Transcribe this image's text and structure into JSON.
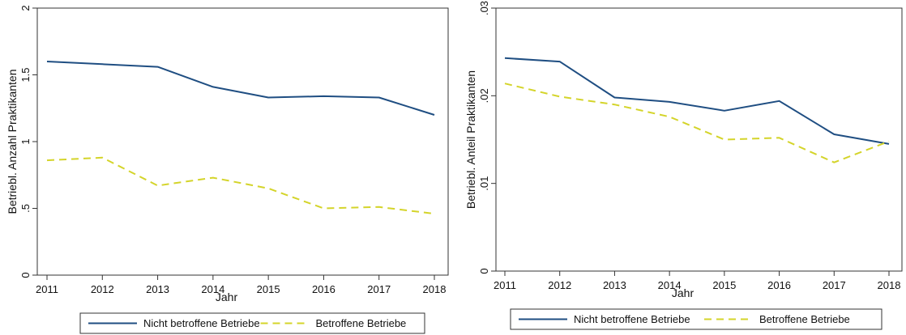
{
  "chart_data": [
    {
      "type": "line",
      "xlabel": "Jahr",
      "ylabel": "Betriebl. Anzahl Praktikanten",
      "x": [
        2011,
        2012,
        2013,
        2014,
        2015,
        2016,
        2017,
        2018
      ],
      "x_tick_labels": [
        "2011",
        "2012",
        "2013",
        "2014",
        "2015",
        "2016",
        "2017",
        "2018"
      ],
      "ylim": [
        0,
        2
      ],
      "y_ticks": [
        0,
        0.5,
        1,
        1.5,
        2
      ],
      "y_tick_labels": [
        "0",
        ".5",
        "1",
        "1.5",
        "2"
      ],
      "grid": false,
      "legend_position": "bottom",
      "series": [
        {
          "name": "Nicht betroffene Betriebe",
          "values": [
            1.6,
            1.58,
            1.56,
            1.41,
            1.33,
            1.34,
            1.33,
            1.2
          ],
          "color": "#1f4e82",
          "style": "solid"
        },
        {
          "name": "Betroffene Betriebe",
          "values": [
            0.86,
            0.88,
            0.67,
            0.73,
            0.65,
            0.5,
            0.51,
            0.46
          ],
          "color": "#d4d42a",
          "style": "dashed"
        }
      ]
    },
    {
      "type": "line",
      "xlabel": "Jahr",
      "ylabel": "Betriebl. Anteil Praktikanten",
      "x": [
        2011,
        2012,
        2013,
        2014,
        2015,
        2016,
        2017,
        2018
      ],
      "x_tick_labels": [
        "2011",
        "2012",
        "2013",
        "2014",
        "2015",
        "2016",
        "2017",
        "2018"
      ],
      "ylim": [
        0,
        0.03
      ],
      "y_ticks": [
        0,
        0.01,
        0.02,
        0.03
      ],
      "y_tick_labels": [
        "0",
        ".01",
        ".02",
        ".03"
      ],
      "grid": false,
      "legend_position": "bottom",
      "series": [
        {
          "name": "Nicht betroffene Betriebe",
          "values": [
            0.0243,
            0.0239,
            0.0198,
            0.0193,
            0.0183,
            0.0194,
            0.0156,
            0.0145
          ],
          "color": "#1f4e82",
          "style": "solid"
        },
        {
          "name": "Betroffene Betriebe",
          "values": [
            0.0214,
            0.0199,
            0.019,
            0.0176,
            0.015,
            0.0152,
            0.0124,
            0.0148
          ],
          "color": "#d4d42a",
          "style": "dashed"
        }
      ]
    }
  ]
}
